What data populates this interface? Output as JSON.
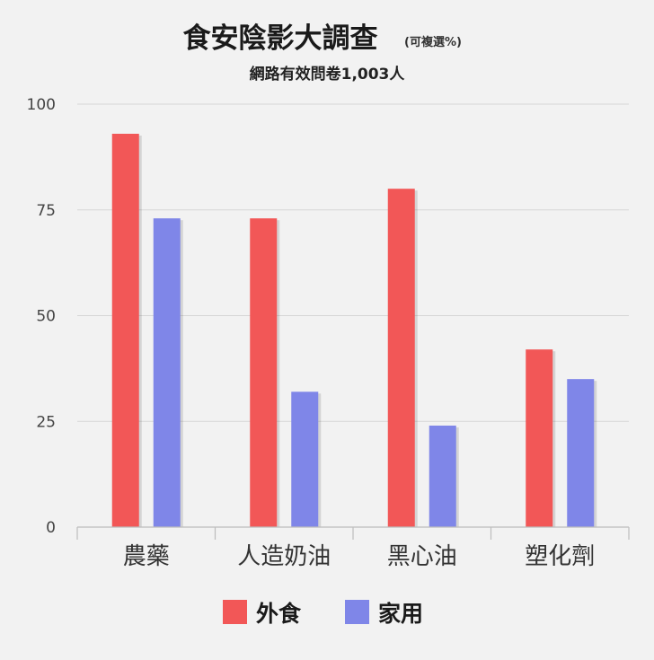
{
  "chart_data": {
    "type": "bar",
    "title": "食安陰影大調查",
    "title_note": "(可複選%)",
    "subtitle": "網路有效問卷1,003人",
    "categories": [
      "農藥",
      "人造奶油",
      "黑心油",
      "塑化劑"
    ],
    "series": [
      {
        "name": "外食",
        "color": "#f25757",
        "values": [
          93,
          73,
          80,
          42
        ]
      },
      {
        "name": "家用",
        "color": "#7f86e8",
        "values": [
          73,
          32,
          24,
          35
        ]
      }
    ],
    "ylim": [
      0,
      100
    ],
    "yticks": [
      0,
      25,
      50,
      75,
      100
    ],
    "grid": true,
    "legend_position": "bottom-center"
  }
}
